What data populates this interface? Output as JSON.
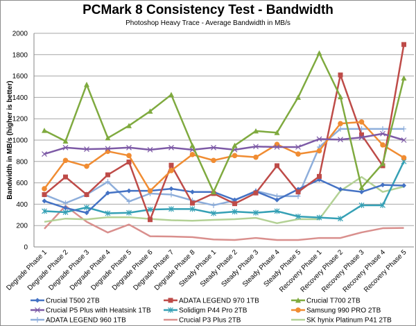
{
  "chart_data": {
    "type": "line",
    "title": "PCMark 8 Consistency Test - Bandwidth",
    "subtitle": "Photoshop Heavy Trace - Average Bandwidth in MB/s",
    "xlabel": "",
    "ylabel": "Bandwidth in MB/s (higher is better)",
    "ylim": [
      0,
      2000
    ],
    "yticks": [
      0,
      200,
      400,
      600,
      800,
      1000,
      1200,
      1400,
      1600,
      1800,
      2000
    ],
    "grid": true,
    "legend_position": "bottom",
    "categories": [
      "Degrade Phase 1",
      "Degrade Phase 2",
      "Degrade Phase 3",
      "Degrade Phase 4",
      "Degrade Phase 5",
      "Degrade Phase 6",
      "Degrade Phase 7",
      "Degrade Phase 8",
      "Steady Phase 1",
      "Steady Phase 2",
      "Steady Phase 3",
      "Steady Phase 4",
      "Steady Phase 5",
      "Recovery Phase 1",
      "Recovery Phase 2",
      "Recovery Phase 3",
      "Recovery Phase 4",
      "Recovery Phase 5"
    ],
    "series": [
      {
        "name": "Crucial T500 2TB",
        "color": "#4472c4",
        "marker": "diamond",
        "values": [
          430,
          365,
          320,
          505,
          525,
          525,
          545,
          515,
          515,
          440,
          520,
          440,
          540,
          630,
          540,
          515,
          580,
          575
        ]
      },
      {
        "name": "ADATA LEGEND 970 1TB",
        "color": "#be4b48",
        "marker": "square",
        "values": [
          490,
          655,
          490,
          675,
          795,
          255,
          765,
          410,
          500,
          405,
          505,
          760,
          515,
          660,
          1610,
          1050,
          760,
          1895
        ]
      },
      {
        "name": "Crucial T700 2TB",
        "color": "#7faa3f",
        "marker": "triangle",
        "values": [
          1090,
          990,
          1520,
          1020,
          1135,
          1270,
          1425,
          950,
          515,
          950,
          1085,
          1070,
          1400,
          1815,
          1405,
          555,
          780,
          1580
        ]
      },
      {
        "name": "Crucial P5 Plus with Heatsink 1TB",
        "color": "#7d5aa6",
        "marker": "x",
        "values": [
          870,
          930,
          915,
          920,
          930,
          910,
          930,
          910,
          930,
          910,
          940,
          935,
          935,
          1010,
          1005,
          1025,
          1060,
          1000
        ]
      },
      {
        "name": "Solidigm P44 Pro 2TB",
        "color": "#35a0b5",
        "marker": "asterisk",
        "values": [
          335,
          325,
          370,
          315,
          320,
          350,
          355,
          355,
          315,
          330,
          320,
          335,
          285,
          275,
          265,
          390,
          390,
          800
        ]
      },
      {
        "name": "Samsung 990 PRO 2TB",
        "color": "#f08c32",
        "marker": "circle",
        "values": [
          545,
          810,
          755,
          895,
          855,
          525,
          715,
          865,
          810,
          855,
          840,
          960,
          870,
          900,
          1155,
          1170,
          955,
          835
        ]
      },
      {
        "name": "ADATA LEGEND 960 1TB",
        "color": "#8eaedb",
        "marker": "plus",
        "values": [
          490,
          410,
          490,
          610,
          425,
          500,
          490,
          435,
          390,
          435,
          525,
          475,
          475,
          935,
          1105,
          1105,
          1105,
          1105
        ]
      },
      {
        "name": "Crucial P3 Plus 2TB",
        "color": "#d98f8d",
        "marker": "none",
        "values": [
          170,
          385,
          235,
          135,
          210,
          100,
          97,
          92,
          70,
          65,
          84,
          65,
          65,
          84,
          84,
          136,
          175,
          178
        ]
      },
      {
        "name": "SK hynix Platinum P41 2TB",
        "color": "#b3d195",
        "marker": "none",
        "values": [
          235,
          265,
          258,
          278,
          278,
          262,
          250,
          245,
          253,
          260,
          272,
          222,
          260,
          260,
          525,
          655,
          515,
          565
        ]
      }
    ]
  }
}
